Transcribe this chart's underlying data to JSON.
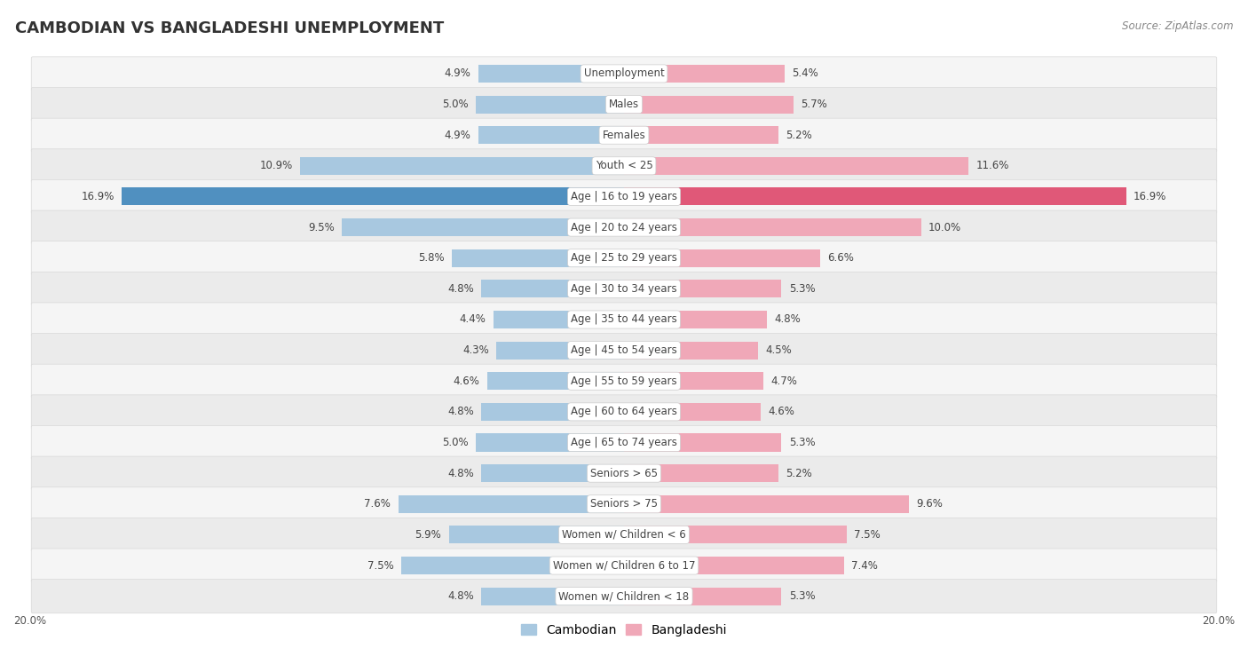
{
  "title": "CAMBODIAN VS BANGLADESHI UNEMPLOYMENT",
  "source": "Source: ZipAtlas.com",
  "categories": [
    "Unemployment",
    "Males",
    "Females",
    "Youth < 25",
    "Age | 16 to 19 years",
    "Age | 20 to 24 years",
    "Age | 25 to 29 years",
    "Age | 30 to 34 years",
    "Age | 35 to 44 years",
    "Age | 45 to 54 years",
    "Age | 55 to 59 years",
    "Age | 60 to 64 years",
    "Age | 65 to 74 years",
    "Seniors > 65",
    "Seniors > 75",
    "Women w/ Children < 6",
    "Women w/ Children 6 to 17",
    "Women w/ Children < 18"
  ],
  "cambodian": [
    4.9,
    5.0,
    4.9,
    10.9,
    16.9,
    9.5,
    5.8,
    4.8,
    4.4,
    4.3,
    4.6,
    4.8,
    5.0,
    4.8,
    7.6,
    5.9,
    7.5,
    4.8
  ],
  "bangladeshi": [
    5.4,
    5.7,
    5.2,
    11.6,
    16.9,
    10.0,
    6.6,
    5.3,
    4.8,
    4.5,
    4.7,
    4.6,
    5.3,
    5.2,
    9.6,
    7.5,
    7.4,
    5.3
  ],
  "cambodian_color": "#a8c8e0",
  "bangladeshi_color": "#f0a8b8",
  "cambodian_highlight_color": "#5090c0",
  "bangladeshi_highlight_color": "#e05878",
  "row_bg_odd": "#f5f5f5",
  "row_bg_even": "#ebebeb",
  "row_border": "#d8d8d8",
  "bar_height": 0.58,
  "xlim": 20.0,
  "legend_cambodian": "Cambodian",
  "legend_bangladeshi": "Bangladeshi",
  "title_fontsize": 13,
  "label_fontsize": 8.5,
  "value_fontsize": 8.5,
  "source_fontsize": 8.5,
  "bg_color": "#ffffff",
  "axis_label_color": "#555555",
  "value_color": "#444444",
  "cat_label_color": "#444444"
}
